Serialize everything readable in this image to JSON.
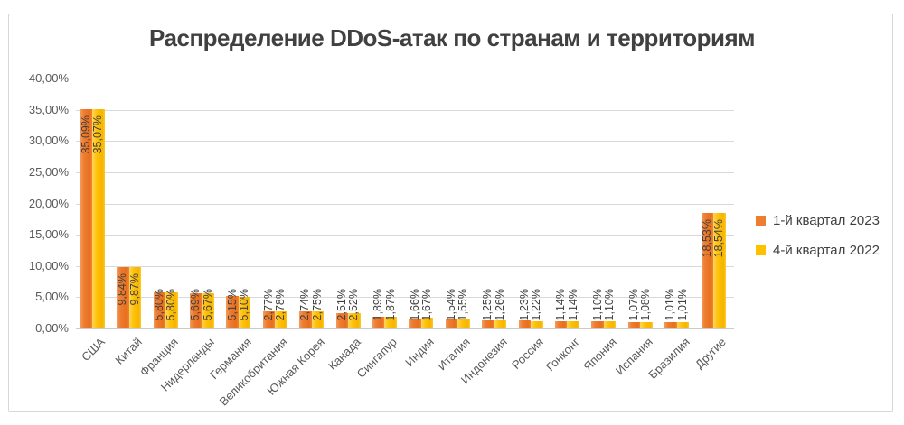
{
  "title": "Распределение DDoS-атак по странам и территориям",
  "colors": {
    "series_q1_2023": "#ED7D31",
    "series_q4_2022": "#FFC000",
    "gridline": "#D9D9D9",
    "title_text": "#404040",
    "axis_text": "#595959",
    "value_label_text": "#404040"
  },
  "legend": {
    "position": "right",
    "items": [
      {
        "label": "1-й квартал 2023",
        "color": "#ED7D31"
      },
      {
        "label": "4-й квартал 2022",
        "color": "#FFC000"
      }
    ]
  },
  "y_axis": {
    "tick_labels": [
      "0,00%",
      "5,00%",
      "10,00%",
      "15,00%",
      "20,00%",
      "25,00%",
      "30,00%",
      "35,00%",
      "40,00%"
    ]
  },
  "chart_data": {
    "type": "bar",
    "title": "Распределение DDoS-атак по странам и территориям",
    "categories": [
      "США",
      "Китай",
      "Франция",
      "Нидерланды",
      "Германия",
      "Великобритания",
      "Южная Корея",
      "Канада",
      "Сингапур",
      "Индия",
      "Италия",
      "Индонезия",
      "Россия",
      "Гонконг",
      "Япония",
      "Испания",
      "Бразилия",
      "Другие"
    ],
    "series": [
      {
        "name": "1-й квартал 2023",
        "color": "#ED7D31",
        "values": [
          35.09,
          9.84,
          5.8,
          5.69,
          5.15,
          2.77,
          2.74,
          2.51,
          1.89,
          1.66,
          1.54,
          1.25,
          1.23,
          1.14,
          1.1,
          1.07,
          1.01,
          18.53
        ]
      },
      {
        "name": "4-й квартал 2022",
        "color": "#FFC000",
        "values": [
          35.07,
          9.87,
          5.8,
          5.67,
          5.1,
          2.78,
          2.75,
          2.52,
          1.87,
          1.67,
          1.55,
          1.26,
          1.22,
          1.14,
          1.1,
          1.08,
          1.01,
          18.54
        ]
      }
    ],
    "xlabel": "",
    "ylabel": "",
    "ylim": [
      0,
      40
    ],
    "y_tick_step": 5,
    "grid": true,
    "legend_position": "right",
    "value_label_format": "#,##0.00% (comma decimal)",
    "value_labels_shown": true,
    "value_label_rotation": "vertical (reads bottom to top)",
    "category_label_rotation": "45deg"
  }
}
